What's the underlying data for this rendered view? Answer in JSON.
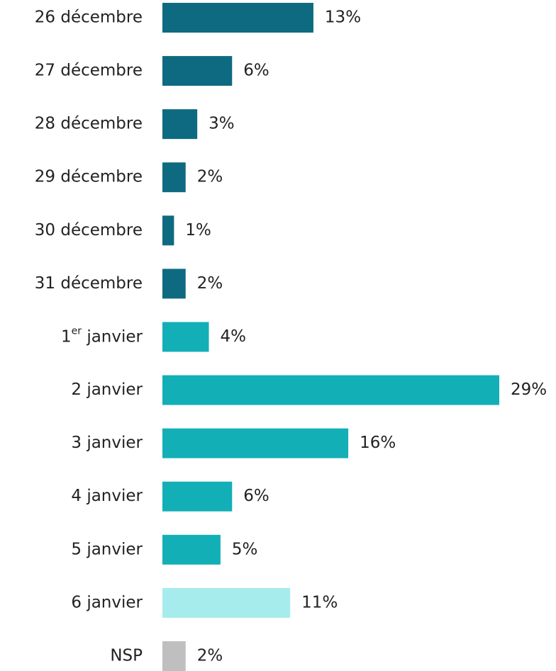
{
  "chart_data": {
    "type": "hbar",
    "categories": [
      "26 décembre",
      "27 décembre",
      "28 décembre",
      "29 décembre",
      "30 décembre",
      "31 décembre",
      "1er janvier",
      "2 janvier",
      "3 janvier",
      "4 janvier",
      "5 janvier",
      "6 janvier",
      "NSP"
    ],
    "values": [
      13,
      6,
      3,
      2,
      1,
      2,
      4,
      29,
      16,
      6,
      5,
      11,
      2
    ],
    "value_labels": [
      "13%",
      "6%",
      "3%",
      "2%",
      "1%",
      "2%",
      "4%",
      "29%",
      "16%",
      "6%",
      "5%",
      "11%",
      "2%"
    ],
    "colors": [
      "#0e6a80",
      "#0e6a80",
      "#0e6a80",
      "#0e6a80",
      "#0e6a80",
      "#0e6a80",
      "#12afb6",
      "#12afb6",
      "#12afb6",
      "#12afb6",
      "#12afb6",
      "#a6ecec",
      "#bfbfbf"
    ]
  }
}
